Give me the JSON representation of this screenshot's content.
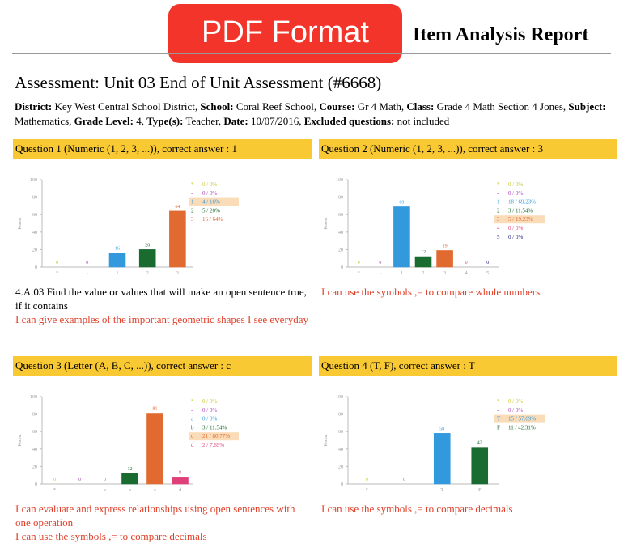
{
  "header": {
    "badge": "PDF Format",
    "title": "Item Analysis Report"
  },
  "assessment": "Assessment:  Unit 03 End of Unit Assessment (#6668)",
  "meta": [
    {
      "label": "District:",
      "value": "Key West Central School District,"
    },
    {
      "label": "School:",
      "value": "Coral Reef School,"
    },
    {
      "label": "Course:",
      "value": "Gr 4 Math,"
    },
    {
      "label": "Class:",
      "value": "Grade 4 Math Section 4 Jones,"
    },
    {
      "label": "Subject:",
      "value": "Mathematics,"
    },
    {
      "label": "Grade Level:",
      "value": "4,"
    },
    {
      "label": "Type(s):",
      "value": "Teacher,"
    },
    {
      "label": "Date:",
      "value": "10/07/2016,"
    },
    {
      "label": "Excluded questions:",
      "value": "not included"
    }
  ],
  "questions": [
    {
      "title": "Question 1 (Numeric (1, 2, 3, ...)), correct answer : 1",
      "chart": {
        "type": "bar",
        "ylabel": "Percent",
        "ylim": [
          0,
          100
        ],
        "yticks": [
          0,
          20,
          40,
          60,
          80,
          100
        ],
        "categories": [
          "*",
          "-",
          "1",
          "2",
          "3"
        ],
        "values": [
          0,
          0,
          16,
          20,
          64
        ],
        "colors": [
          "#c8c832",
          "#b040c0",
          "#3399dd",
          "#1a6b30",
          "#e06a30"
        ],
        "legend": [
          "0 / 0%",
          "0 / 0%",
          "4 / 16%",
          "5 / 20%",
          "16 / 64%"
        ],
        "highlight": 2
      },
      "standards": [
        {
          "text": "4.A.03  Find the value or values that will make an open sentence true, if it contains",
          "color": "#000000"
        },
        {
          "text": "I can give examples of the important geometric shapes I see everyday",
          "color": "#e0402a"
        }
      ]
    },
    {
      "title": "Question 2 (Numeric (1, 2, 3, ...)), correct answer : 3",
      "chart": {
        "type": "bar",
        "ylabel": "Percent",
        "ylim": [
          0,
          100
        ],
        "yticks": [
          0,
          20,
          40,
          60,
          80,
          100
        ],
        "categories": [
          "*",
          "-",
          "1",
          "2",
          "3",
          "4",
          "5"
        ],
        "values": [
          0,
          0,
          69,
          12,
          19,
          0,
          0
        ],
        "colors": [
          "#c8c832",
          "#b040c0",
          "#3399dd",
          "#1a6b30",
          "#e06a30",
          "#e0407a",
          "#202080"
        ],
        "legend": [
          "0 / 0%",
          "0 / 0%",
          "18 / 69.23%",
          "3 / 11.54%",
          "5 / 19.23%",
          "0 / 0%",
          "0 / 0%"
        ],
        "highlight": 4
      },
      "standards": [
        {
          "text": "I can use the symbols ,= to compare whole numbers",
          "color": "#e0402a"
        }
      ]
    },
    {
      "title": "Question 3 (Letter (A, B, C, ...)), correct answer : c",
      "chart": {
        "type": "bar",
        "ylabel": "Percent",
        "ylim": [
          0,
          100
        ],
        "yticks": [
          0,
          20,
          40,
          60,
          80,
          100
        ],
        "categories": [
          "*",
          "-",
          "a",
          "b",
          "c",
          "d"
        ],
        "values": [
          0,
          0,
          0,
          12,
          81,
          8
        ],
        "colors": [
          "#c8c832",
          "#b040c0",
          "#3399dd",
          "#1a6b30",
          "#e06a30",
          "#e0407a"
        ],
        "legend": [
          "0 / 0%",
          "0 / 0%",
          "0 / 0%",
          "3 / 11.54%",
          "21 / 80.77%",
          "2 / 7.69%"
        ],
        "highlight": 4
      },
      "standards": [
        {
          "text": "I can evaluate and express relationships using open sentences with one operation",
          "color": "#e0402a"
        },
        {
          "text": "I can use the symbols ,= to compare decimals",
          "color": "#e0402a"
        }
      ]
    },
    {
      "title": "Question 4 (T, F), correct answer : T",
      "chart": {
        "type": "bar",
        "ylabel": "Percent",
        "ylim": [
          0,
          100
        ],
        "yticks": [
          0,
          20,
          40,
          60,
          80,
          100
        ],
        "categories": [
          "*",
          "-",
          "T",
          "F"
        ],
        "values": [
          0,
          0,
          58,
          42
        ],
        "colors": [
          "#c8c832",
          "#b040c0",
          "#3399dd",
          "#1a6b30"
        ],
        "legend": [
          "0 / 0%",
          "0 / 0%",
          "15 / 57.69%",
          "11 / 42.31%"
        ],
        "highlight": 2
      },
      "standards": [
        {
          "text": "I can use the symbols ,= to compare decimals",
          "color": "#e0402a"
        }
      ]
    }
  ]
}
